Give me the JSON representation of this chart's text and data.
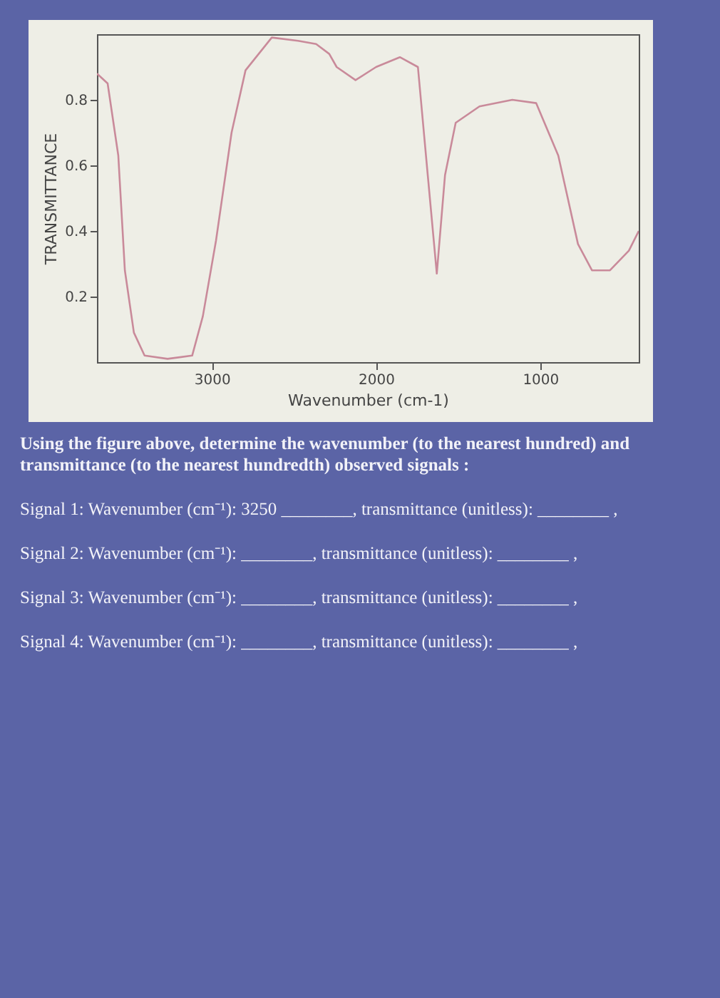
{
  "chart_data": {
    "type": "line",
    "ylabel": "TRANSMITTANCE",
    "xlabel": "Wavenumber (cm-1)",
    "xlim": [
      3700,
      400
    ],
    "xticks": [
      3000,
      2000,
      1000
    ],
    "ylim": [
      0,
      1
    ],
    "yticks": [
      0.2,
      0.4,
      0.6,
      0.8
    ],
    "grid": false,
    "marker": "none",
    "line_style": "solid",
    "series": [
      {
        "color": "#c98a9a",
        "x": [
          3700,
          3635,
          3570,
          3530,
          3475,
          3410,
          3270,
          3120,
          3055,
          2975,
          2880,
          2795,
          2635,
          2475,
          2365,
          2285,
          2240,
          2125,
          2000,
          1855,
          1745,
          1685,
          1630,
          1580,
          1515,
          1370,
          1170,
          1025,
          890,
          770,
          685,
          575,
          460,
          400
        ],
        "values": [
          0.88,
          0.85,
          0.63,
          0.28,
          0.09,
          0.02,
          0.01,
          0.02,
          0.14,
          0.37,
          0.7,
          0.89,
          0.99,
          0.98,
          0.97,
          0.94,
          0.9,
          0.86,
          0.9,
          0.93,
          0.9,
          0.57,
          0.27,
          0.57,
          0.73,
          0.78,
          0.8,
          0.79,
          0.63,
          0.36,
          0.28,
          0.28,
          0.34,
          0.4
        ]
      }
    ],
    "annotations": [
      "Using the figure above, determine the wavenumber (to the nearest hundred) and transmittance (to the nearest hundredth) observed signals :",
      "Signal 1: Wavenumber (cm⁻¹): 3250 ________, transmittance (unitless): ________ ,",
      "Signal 2: Wavenumber (cm⁻¹): ________, transmittance (unitless): ________ ,",
      "Signal 3: Wavenumber (cm⁻¹): ________, transmittance (unitless): ________ ,",
      "Signal 4: Wavenumber (cm⁻¹): ________, transmittance (unitless): ________ ,"
    ]
  }
}
